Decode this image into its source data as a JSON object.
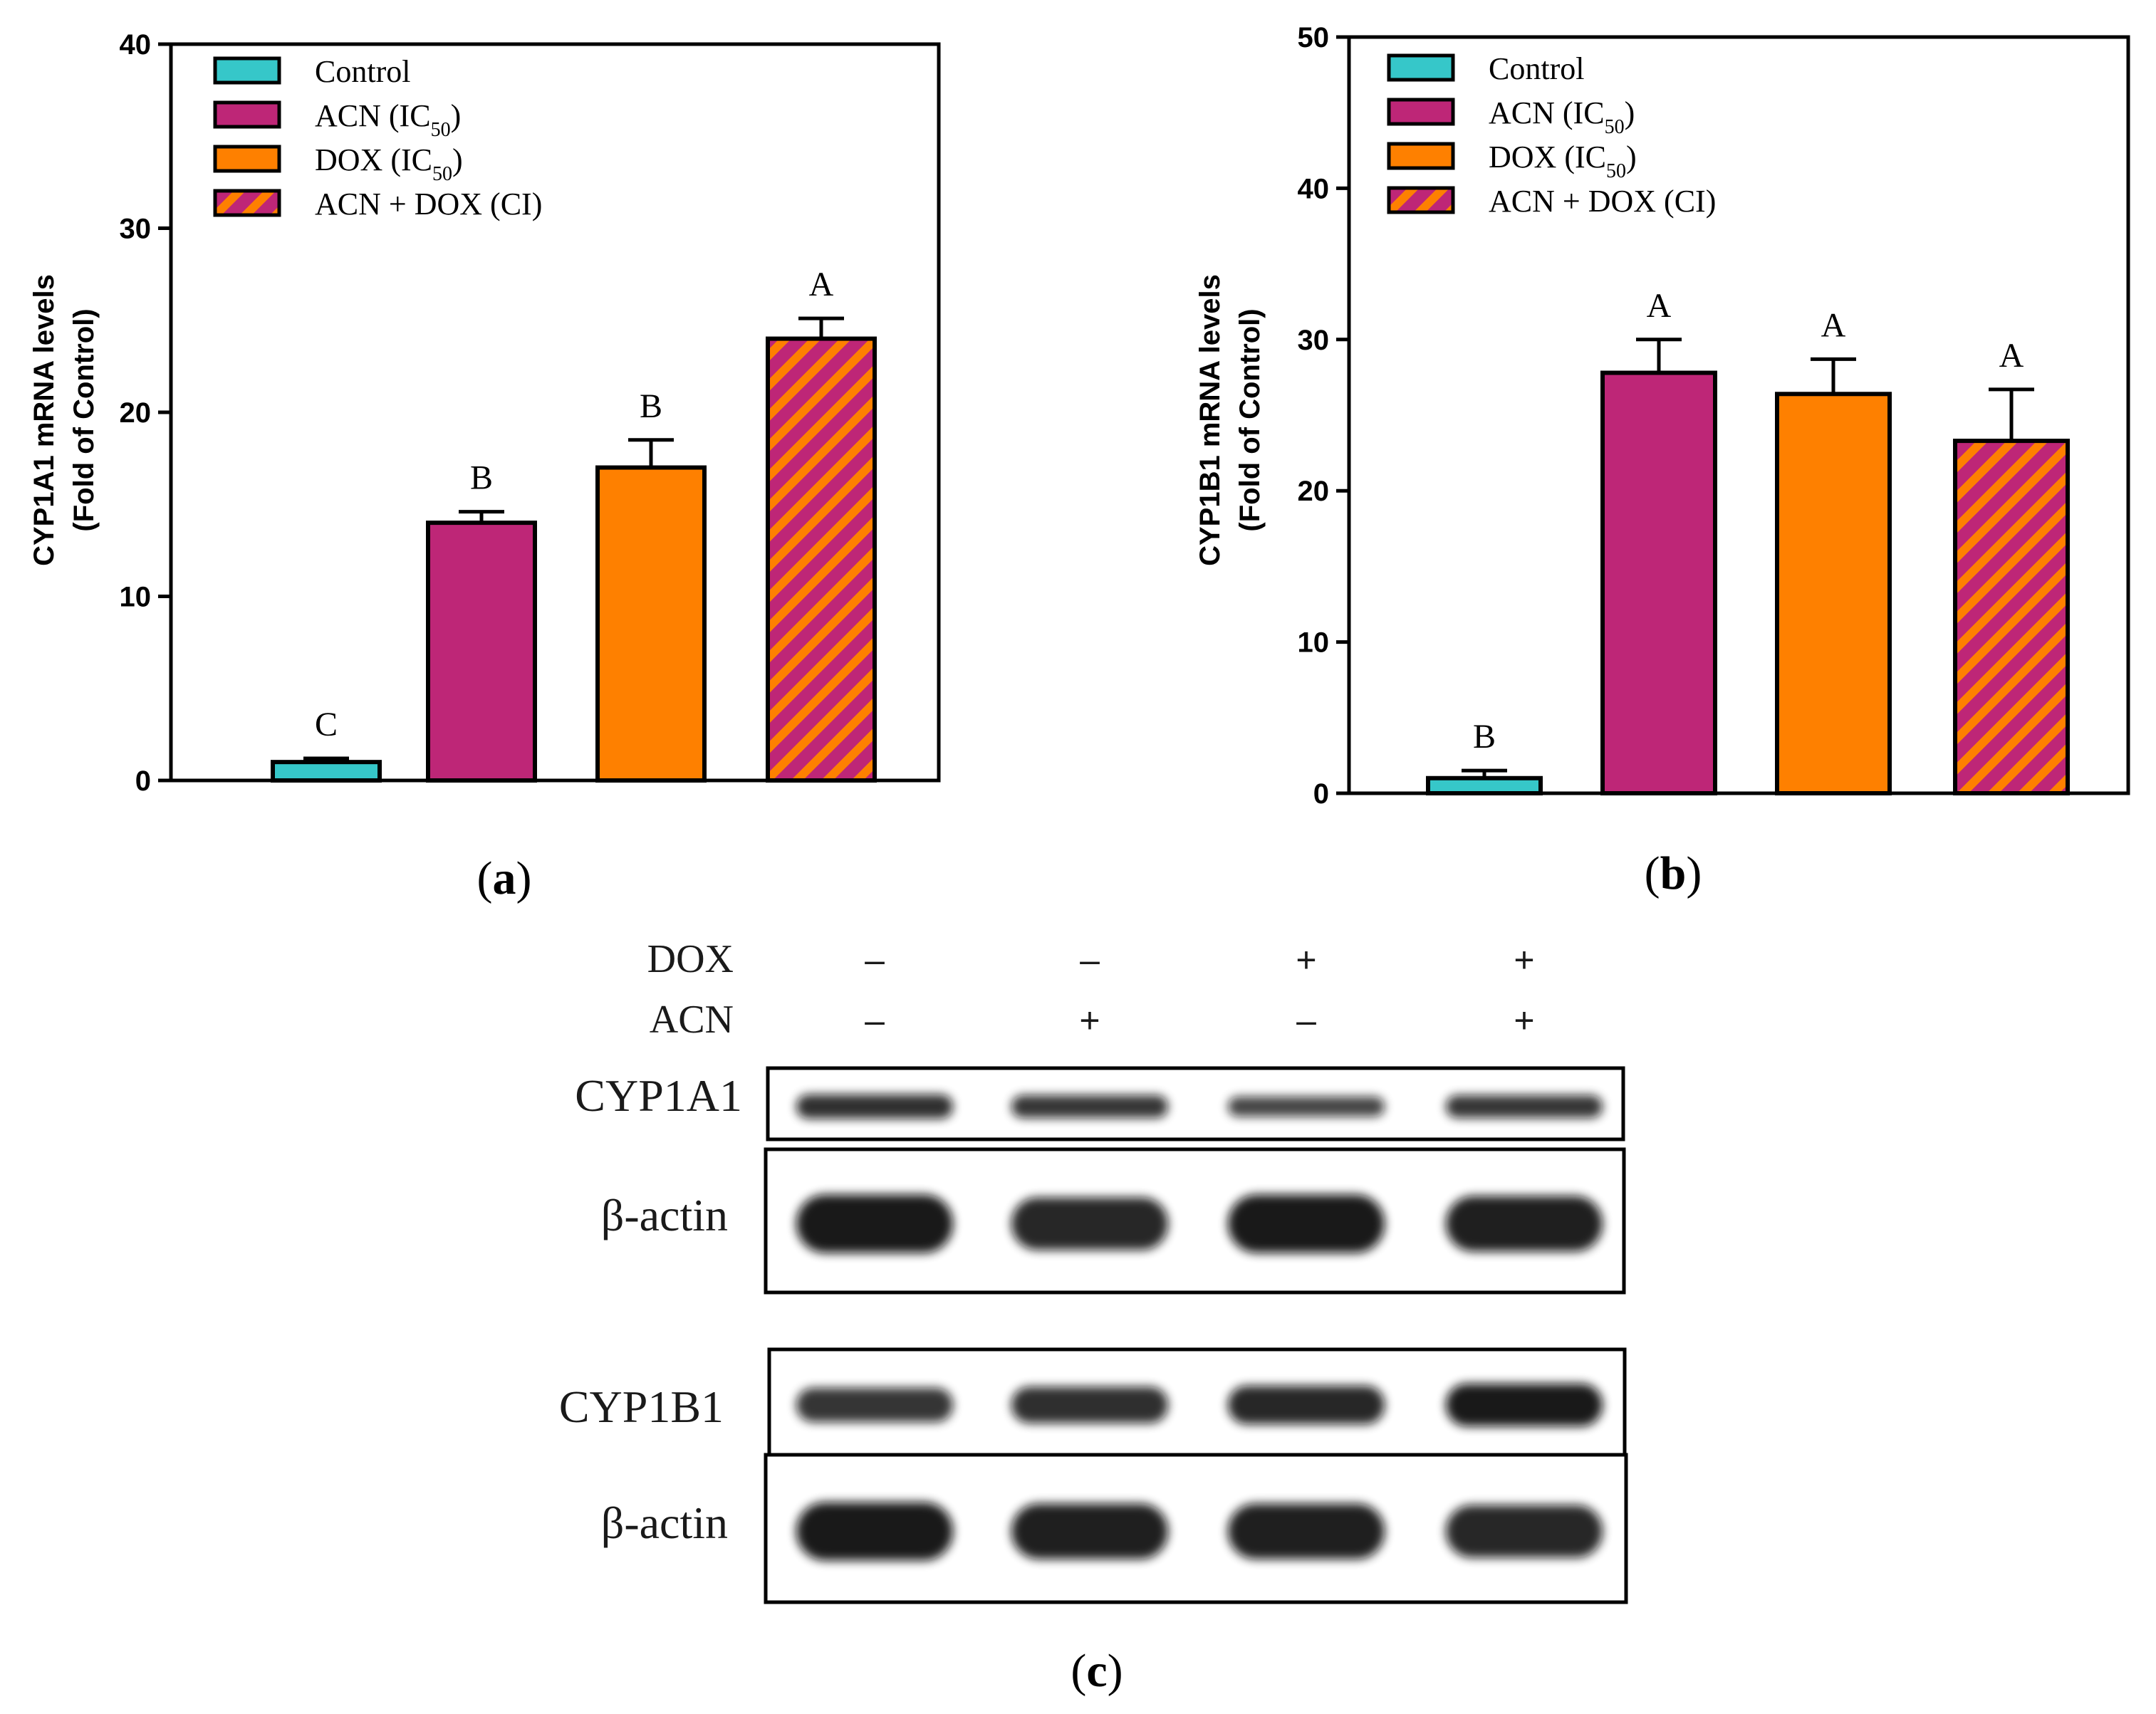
{
  "colors": {
    "Control": "#36c7c9",
    "ACN (IC50)": "#be2677",
    "DOX (IC50)": "#fe8000",
    "hatch_bg": "#be2677",
    "hatch_stripe": "#fe8000",
    "axis": "#000000",
    "band": "#111111"
  },
  "legend_entries": [
    {
      "label": "Control",
      "sub": "",
      "suffix": "",
      "fill": "solid",
      "color": "#36c7c9"
    },
    {
      "label": "ACN (IC",
      "sub": "50",
      "suffix": ")",
      "fill": "solid",
      "color": "#be2677"
    },
    {
      "label": "DOX (IC",
      "sub": "50",
      "suffix": ")",
      "fill": "solid",
      "color": "#fe8000"
    },
    {
      "label": "ACN + DOX (CI)",
      "sub": "",
      "suffix": "",
      "fill": "hatch",
      "color": "#be2677"
    }
  ],
  "chart_data": [
    {
      "type": "bar",
      "panel": "(a)",
      "panel_letter": "a",
      "title": "",
      "xlabel": "",
      "ylabel_line1": "CYP1A1 mRNA levels",
      "ylabel_line2": "(Fold of Control)",
      "ylim": [
        0,
        40
      ],
      "yticks": [
        0,
        10,
        20,
        30,
        40
      ],
      "categories": [
        "Control",
        "ACN (IC50)",
        "DOX (IC50)",
        "ACN + DOX (CI)"
      ],
      "values": [
        1.0,
        14.0,
        17.0,
        24.0
      ],
      "errors": [
        0.2,
        0.6,
        1.5,
        1.1
      ],
      "significance": [
        "C",
        "B",
        "B",
        "A"
      ],
      "legend": "top-left"
    },
    {
      "type": "bar",
      "panel": "(b)",
      "panel_letter": "b",
      "title": "",
      "xlabel": "",
      "ylabel_line1": "CYP1B1 mRNA levels",
      "ylabel_line2": "(Fold of Control)",
      "ylim": [
        0,
        50
      ],
      "yticks": [
        0,
        10,
        20,
        30,
        40,
        50
      ],
      "categories": [
        "Control",
        "ACN (IC50)",
        "DOX (IC50)",
        "ACN + DOX (CI)"
      ],
      "values": [
        1.0,
        27.8,
        26.4,
        23.3
      ],
      "errors": [
        0.5,
        2.2,
        2.3,
        3.4
      ],
      "significance": [
        "B",
        "A",
        "A",
        "A"
      ],
      "legend": "top-left"
    }
  ],
  "western_blot": {
    "panel": "(c)",
    "panel_letter": "c",
    "treatments": [
      {
        "name": "DOX",
        "signs": [
          "–",
          "–",
          "+",
          "+"
        ]
      },
      {
        "name": "ACN",
        "signs": [
          "–",
          "+",
          "–",
          "+"
        ]
      }
    ],
    "blots": [
      {
        "label": "CYP1A1",
        "band_intensity": [
          0.85,
          0.8,
          0.7,
          0.8
        ]
      },
      {
        "label": "β-actin",
        "band_intensity": [
          1.0,
          0.9,
          1.0,
          0.95
        ]
      },
      {
        "label": "CYP1B1",
        "band_intensity": [
          0.8,
          0.85,
          0.9,
          1.0
        ]
      },
      {
        "label": "β-actin",
        "band_intensity": [
          1.0,
          0.95,
          0.95,
          0.9
        ]
      }
    ]
  }
}
